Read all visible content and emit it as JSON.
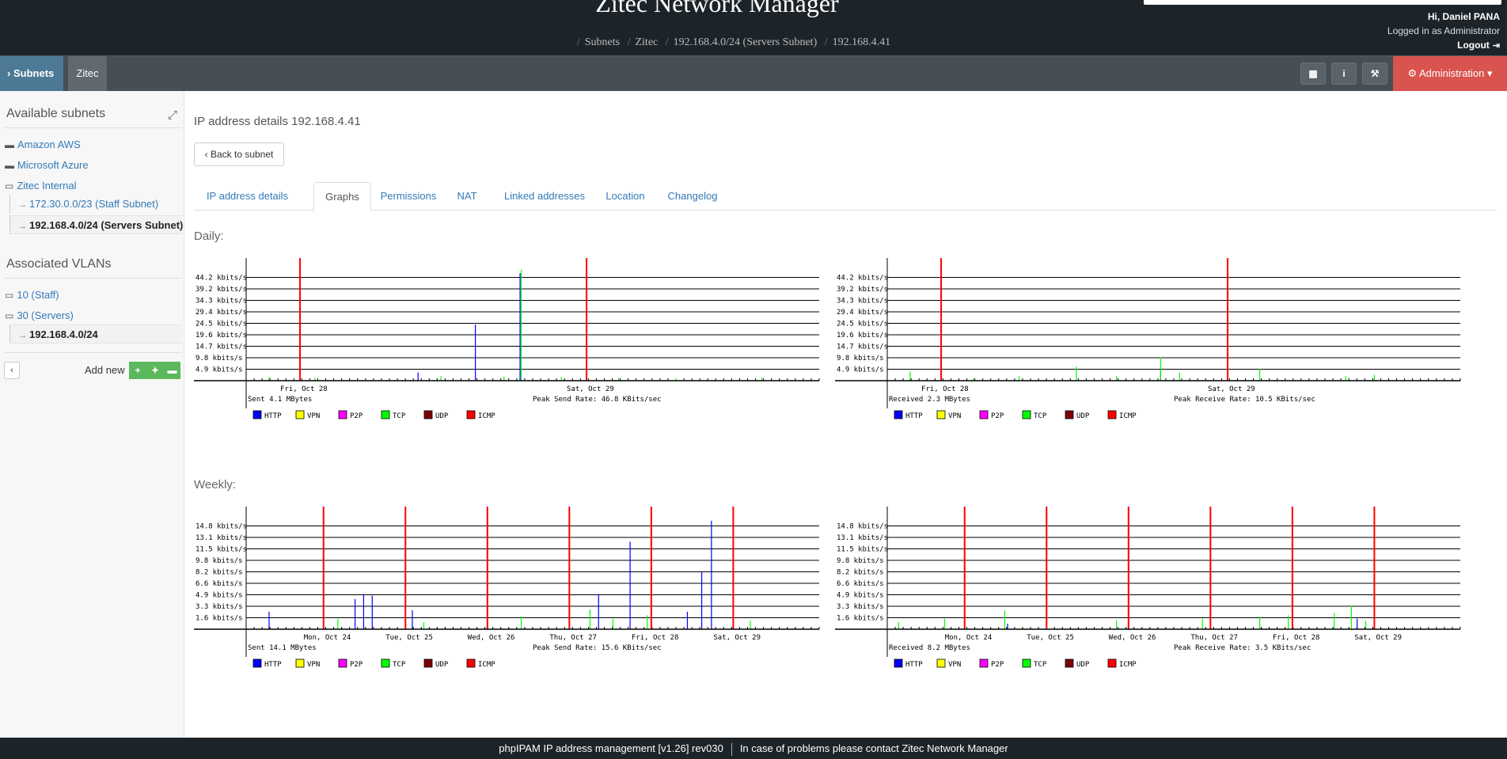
{
  "header": {
    "title": "Zitec Network Manager",
    "breadcrumb": [
      "Subnets",
      "Zitec",
      "192.168.4.0/24 (Servers Subnet)",
      "192.168.4.41"
    ],
    "user_greeting": "Hi, Daniel PANA",
    "logged_as": "Logged in as  Administrator",
    "logout": "Logout"
  },
  "menu": {
    "subnets": "Subnets",
    "zitec": "Zitec",
    "administration": "Administration"
  },
  "sidebar": {
    "available_subnets": "Available subnets",
    "subnets": [
      "Amazon AWS",
      "Microsoft Azure",
      "Zitec Internal"
    ],
    "zitec_children": [
      "172.30.0.0/23 (Staff Subnet)",
      "192.168.4.0/24 (Servers Subnet)"
    ],
    "associated_vlans": "Associated VLANs",
    "vlans": [
      "10 (Staff)",
      "30 (Servers)"
    ],
    "vlan_children": [
      "192.168.4.0/24"
    ],
    "add_new": "Add new"
  },
  "main": {
    "page_title": "IP address details 192.168.4.41",
    "back_button": "Back to subnet",
    "tabs": [
      "IP address details",
      "Graphs",
      "Permissions",
      "NAT",
      "Linked addresses",
      "Location",
      "Changelog"
    ],
    "active_tab": "Graphs",
    "daily_label": "Daily:",
    "weekly_label": "Weekly:"
  },
  "footer": {
    "left": "phpIPAM IP address management [v1.26] rev030",
    "right": "In case of problems please contact Zitec Network Manager"
  },
  "colors": {
    "http": "#0000ff",
    "vpn": "#ffff00",
    "p2p": "#ff00ff",
    "tcp": "#00ff00",
    "udp": "#7f0000",
    "icmp": "#ff0000",
    "day_marker": "#ff0000"
  },
  "chart_data": [
    {
      "type": "bar",
      "id": "daily-send",
      "yticks": [
        "44.2 kbits/s",
        "39.2 kbits/s",
        "34.3 kbits/s",
        "29.4 kbits/s",
        "24.5 kbits/s",
        "19.6 kbits/s",
        "14.7 kbits/s",
        "9.8 kbits/s",
        "4.9 kbits/s"
      ],
      "ylim": [
        0,
        49.1
      ],
      "day_labels": [
        "Fri, Oct 28",
        "Sat, Oct 29"
      ],
      "day_markers": [
        0.094,
        0.594
      ],
      "summary_left": "Sent 4.1 MBytes",
      "summary_right": "Peak Send Rate: 46.8 KBits/sec",
      "legend": [
        "HTTP",
        "VPN",
        "P2P",
        "TCP",
        "UDP",
        "ICMP"
      ],
      "series": [
        {
          "name": "HTTP",
          "points": [
            [
              0.3,
              3.5
            ],
            [
              0.4,
              24.0
            ],
            [
              0.478,
              46.0
            ]
          ]
        },
        {
          "name": "TCP",
          "points": [
            [
              0.04,
              1.5
            ],
            [
              0.12,
              1.2
            ],
            [
              0.34,
              2.0
            ],
            [
              0.45,
              1.8
            ],
            [
              0.48,
              47.5
            ],
            [
              0.55,
              1.5
            ],
            [
              0.65,
              1.2
            ],
            [
              0.75,
              1.0
            ],
            [
              0.9,
              1.4
            ]
          ]
        }
      ]
    },
    {
      "type": "bar",
      "id": "daily-receive",
      "yticks": [
        "44.2 kbits/s",
        "39.2 kbits/s",
        "34.3 kbits/s",
        "29.4 kbits/s",
        "24.5 kbits/s",
        "19.6 kbits/s",
        "14.7 kbits/s",
        "9.8 kbits/s",
        "4.9 kbits/s"
      ],
      "ylim": [
        0,
        49.1
      ],
      "day_labels": [
        "Fri, Oct 28",
        "Sat, Oct 29"
      ],
      "day_markers": [
        0.094,
        0.594
      ],
      "summary_left": "Received 2.3 MBytes",
      "summary_right": "Peak Receive Rate: 10.5 KBits/sec",
      "legend": [
        "HTTP",
        "VPN",
        "P2P",
        "TCP",
        "UDP",
        "ICMP"
      ],
      "series": [
        {
          "name": "HTTP",
          "points": [
            [
              0.477,
              5.5
            ]
          ]
        },
        {
          "name": "TCP",
          "points": [
            [
              0.04,
              4.0
            ],
            [
              0.15,
              1.0
            ],
            [
              0.23,
              2.0
            ],
            [
              0.33,
              6.0
            ],
            [
              0.4,
              2.0
            ],
            [
              0.477,
              10.0
            ],
            [
              0.51,
              3.5
            ],
            [
              0.65,
              5.0
            ],
            [
              0.8,
              2.0
            ],
            [
              0.85,
              2.5
            ]
          ]
        }
      ]
    },
    {
      "type": "bar",
      "id": "weekly-send",
      "yticks": [
        "14.8 kbits/s",
        "13.1 kbits/s",
        "11.5 kbits/s",
        "9.8 kbits/s",
        "8.2 kbits/s",
        "6.6 kbits/s",
        "4.9 kbits/s",
        "3.3 kbits/s",
        "1.6 kbits/s"
      ],
      "ylim": [
        0,
        16.4
      ],
      "day_labels": [
        "Mon, Oct 24",
        "Tue, Oct 25",
        "Wed, Oct 26",
        "Thu, Oct 27",
        "Fri, Oct 28",
        "Sat, Oct 29"
      ],
      "day_markers": [
        0.135,
        0.278,
        0.421,
        0.564,
        0.707,
        0.85
      ],
      "summary_left": "Sent 14.1 MBytes",
      "summary_right": "Peak Send Rate: 15.6 KBits/sec",
      "legend": [
        "HTTP",
        "VPN",
        "P2P",
        "TCP",
        "UDP",
        "ICMP"
      ],
      "series": [
        {
          "name": "HTTP",
          "points": [
            [
              0.04,
              2.5
            ],
            [
              0.19,
              4.3
            ],
            [
              0.205,
              5.0
            ],
            [
              0.22,
              4.8
            ],
            [
              0.29,
              2.7
            ],
            [
              0.615,
              5.0
            ],
            [
              0.67,
              12.5
            ],
            [
              0.77,
              2.5
            ],
            [
              0.795,
              8.2
            ],
            [
              0.812,
              15.5
            ]
          ]
        },
        {
          "name": "TCP",
          "points": [
            [
              0.16,
              1.5
            ],
            [
              0.31,
              1.0
            ],
            [
              0.48,
              1.8
            ],
            [
              0.6,
              2.8
            ],
            [
              0.64,
              1.5
            ],
            [
              0.7,
              2.0
            ],
            [
              0.88,
              1.2
            ]
          ]
        }
      ]
    },
    {
      "type": "bar",
      "id": "weekly-receive",
      "yticks": [
        "14.8 kbits/s",
        "13.1 kbits/s",
        "11.5 kbits/s",
        "9.8 kbits/s",
        "8.2 kbits/s",
        "6.6 kbits/s",
        "4.9 kbits/s",
        "3.3 kbits/s",
        "1.6 kbits/s"
      ],
      "ylim": [
        0,
        16.4
      ],
      "day_labels": [
        "Mon, Oct 24",
        "Tue, Oct 25",
        "Wed, Oct 26",
        "Thu, Oct 27",
        "Fri, Oct 28",
        "Sat, Oct 29"
      ],
      "day_markers": [
        0.135,
        0.278,
        0.421,
        0.564,
        0.707,
        0.85
      ],
      "summary_left": "Received 8.2 MBytes",
      "summary_right": "Peak Receive Rate: 3.5 KBits/sec",
      "legend": [
        "HTTP",
        "VPN",
        "P2P",
        "TCP",
        "UDP",
        "ICMP"
      ],
      "series": [
        {
          "name": "HTTP",
          "points": [
            [
              0.21,
              0.8
            ],
            [
              0.82,
              1.5
            ]
          ]
        },
        {
          "name": "TCP",
          "points": [
            [
              0.02,
              1.0
            ],
            [
              0.1,
              1.5
            ],
            [
              0.205,
              2.7
            ],
            [
              0.4,
              1.3
            ],
            [
              0.55,
              1.5
            ],
            [
              0.65,
              1.8
            ],
            [
              0.7,
              2.0
            ],
            [
              0.78,
              2.3
            ],
            [
              0.81,
              3.4
            ],
            [
              0.835,
              1.2
            ]
          ]
        }
      ]
    }
  ]
}
